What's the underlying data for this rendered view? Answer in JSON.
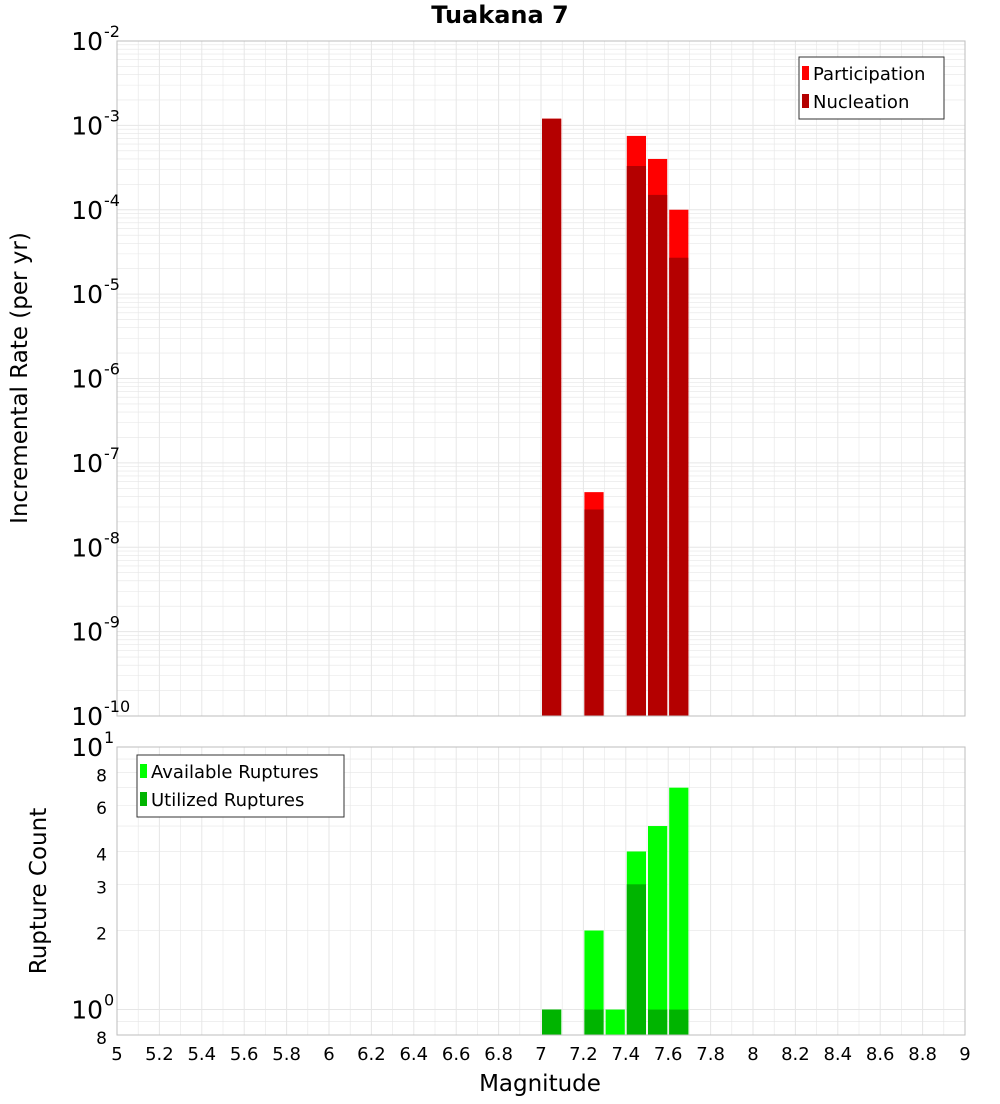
{
  "title": "Tuakana 7",
  "xlabel": "Magnitude",
  "x_ticks": [
    "5",
    "5.2",
    "5.4",
    "5.6",
    "5.8",
    "6",
    "6.2",
    "6.4",
    "6.6",
    "6.8",
    "7",
    "7.2",
    "7.4",
    "7.6",
    "7.8",
    "8",
    "8.2",
    "8.4",
    "8.6",
    "8.8",
    "9"
  ],
  "colors": {
    "participation": "#ff0000",
    "nucleation": "#b40000",
    "available": "#00ff00",
    "utilized": "#00b400",
    "grid": "#e6e6e6",
    "frame": "#bdbdbd"
  },
  "chart_data": [
    {
      "type": "bar",
      "title": "Tuakana 7",
      "xlabel": "Magnitude",
      "ylabel": "Incremental Rate (per yr)",
      "y_scale": "log",
      "xlim": [
        5,
        9
      ],
      "ylim": [
        1e-10,
        0.01
      ],
      "grid": true,
      "legend_position": "top-right",
      "y_ticks": [
        {
          "base": "10",
          "exp": "-2",
          "value": 0.01
        },
        {
          "base": "10",
          "exp": "-3",
          "value": 0.001
        },
        {
          "base": "10",
          "exp": "-4",
          "value": 0.0001
        },
        {
          "base": "10",
          "exp": "-5",
          "value": 1e-05
        },
        {
          "base": "10",
          "exp": "-6",
          "value": 1e-06
        },
        {
          "base": "10",
          "exp": "-7",
          "value": 1e-07
        },
        {
          "base": "10",
          "exp": "-8",
          "value": 1e-08
        },
        {
          "base": "10",
          "exp": "-9",
          "value": 1e-09
        },
        {
          "base": "10",
          "exp": "-10",
          "value": 1e-10
        }
      ],
      "x": [
        7.05,
        7.25,
        7.45,
        7.55,
        7.65
      ],
      "bin_width": 0.1,
      "series": [
        {
          "name": "Participation",
          "values": [
            0.0012,
            4.5e-08,
            0.00075,
            0.0004,
            0.0001
          ]
        },
        {
          "name": "Nucleation",
          "values": [
            0.0012,
            2.8e-08,
            0.00033,
            0.00015,
            2.7e-05
          ]
        }
      ]
    },
    {
      "type": "bar",
      "ylabel": "Rupture Count",
      "xlabel": "Magnitude",
      "y_scale": "log",
      "xlim": [
        5,
        9
      ],
      "ylim": [
        0.8,
        10
      ],
      "grid": true,
      "legend_position": "top-left",
      "y_ticks": [
        {
          "base": "10",
          "exp": "1",
          "value": 10
        },
        {
          "base": "8",
          "exp": "",
          "value": 8
        },
        {
          "base": "6",
          "exp": "",
          "value": 6
        },
        {
          "base": "4",
          "exp": "",
          "value": 4
        },
        {
          "base": "3",
          "exp": "",
          "value": 3
        },
        {
          "base": "2",
          "exp": "",
          "value": 2
        },
        {
          "base": "10",
          "exp": "0",
          "value": 1
        },
        {
          "base": "8",
          "exp": "",
          "value": 0.8
        }
      ],
      "x": [
        7.05,
        7.25,
        7.35,
        7.45,
        7.55,
        7.65
      ],
      "bin_width": 0.1,
      "series": [
        {
          "name": "Available Ruptures",
          "values": [
            1,
            2,
            1,
            4,
            5,
            7
          ]
        },
        {
          "name": "Utilized Ruptures",
          "values": [
            1,
            1,
            0,
            3,
            1,
            1
          ]
        }
      ]
    }
  ]
}
